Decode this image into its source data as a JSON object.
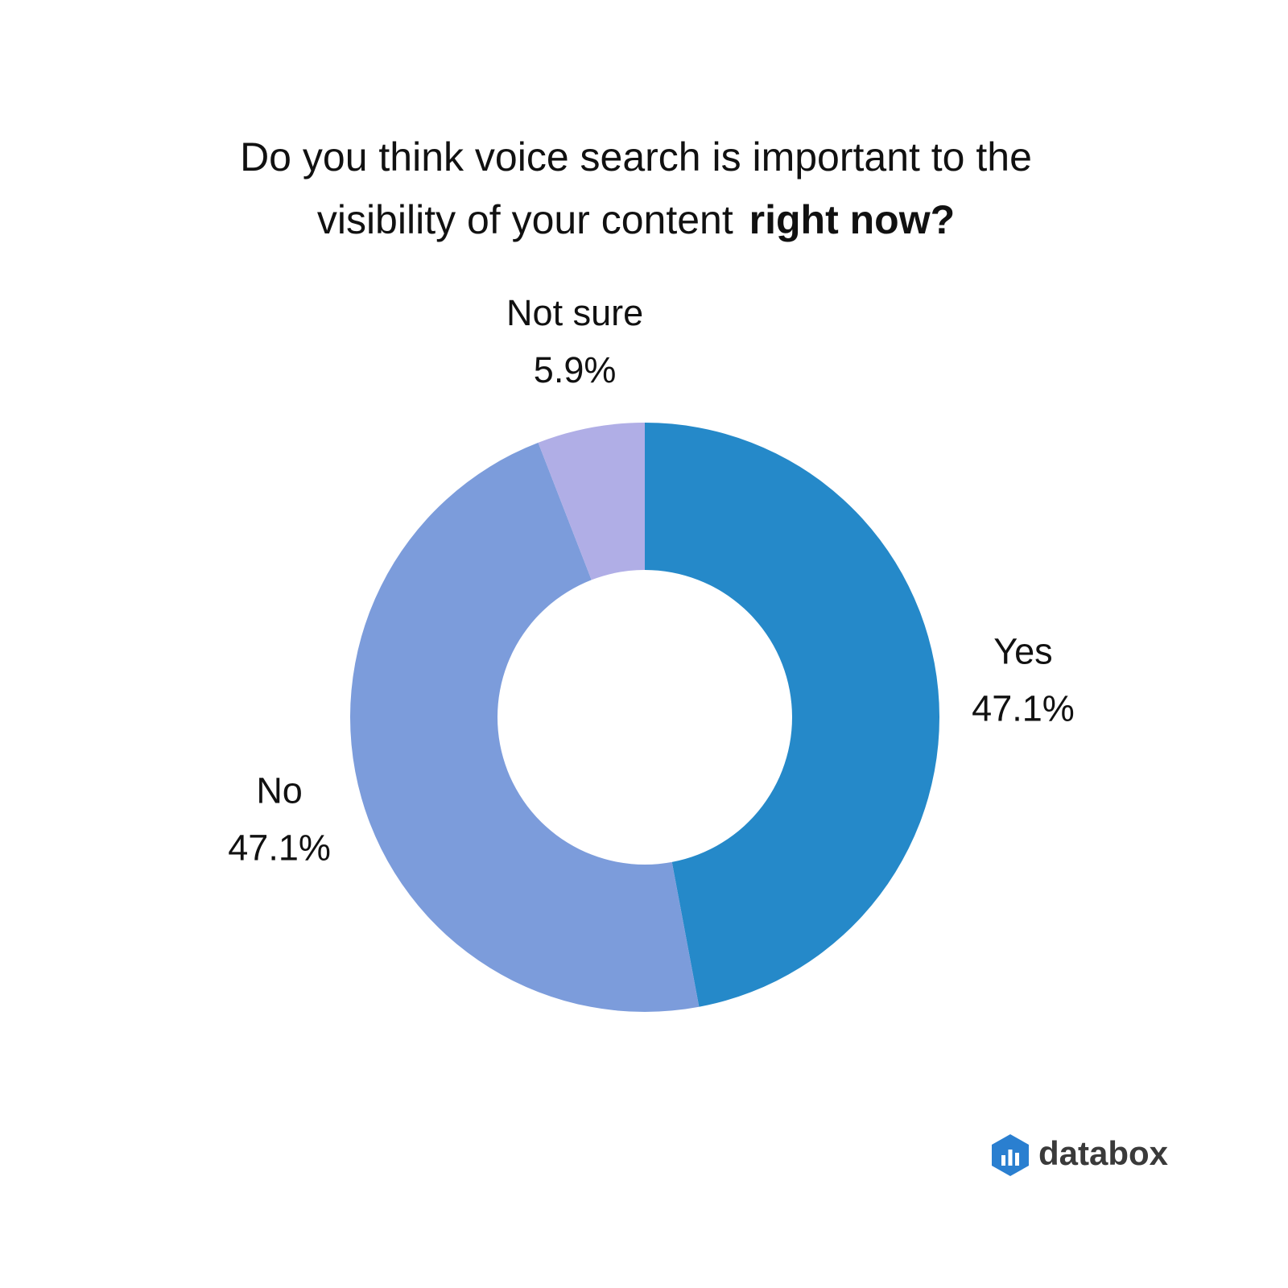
{
  "chart_data": {
    "type": "donut",
    "title": [
      "Do you think voice search is important to the",
      "visibility of your content",
      "right now?"
    ],
    "categories": [
      "Yes",
      "No",
      "Not sure"
    ],
    "values": [
      47.1,
      47.1,
      5.9
    ],
    "value_labels": [
      "47.1%",
      "47.1%",
      "5.9%"
    ],
    "colors": [
      "#2589c9",
      "#7c9cdb",
      "#b0aee6"
    ]
  },
  "logo": "databox"
}
